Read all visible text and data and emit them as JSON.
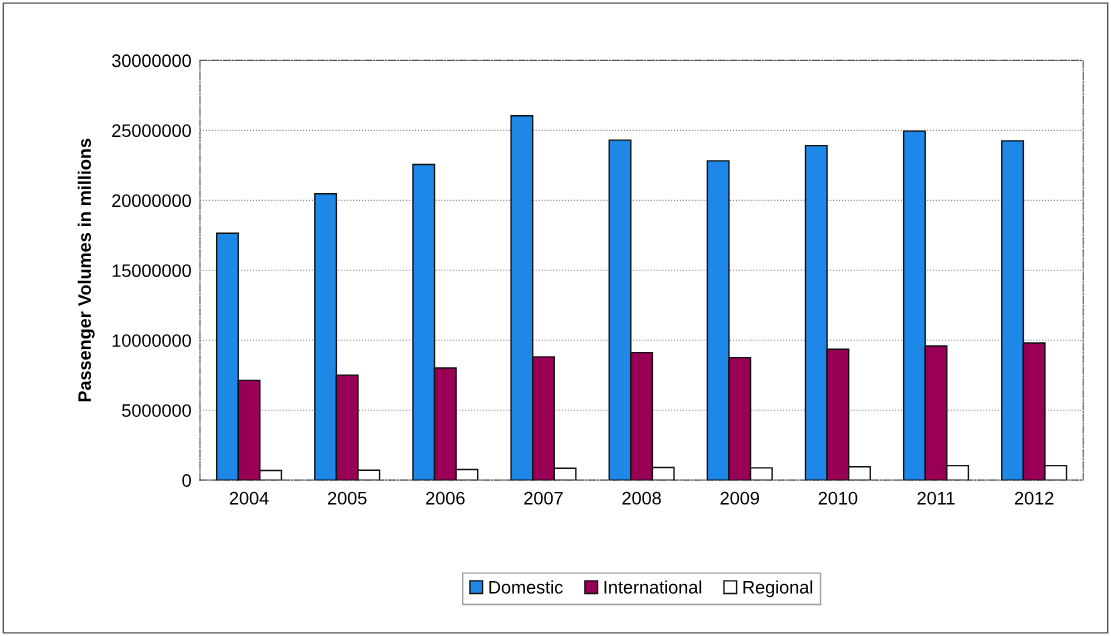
{
  "chart_data": {
    "type": "bar",
    "ylabel": "Passenger Volumes in millions",
    "categories": [
      "2004",
      "2005",
      "2006",
      "2007",
      "2008",
      "2009",
      "2010",
      "2011",
      "2012"
    ],
    "series": [
      {
        "name": "Domestic",
        "color": "#1e88e8",
        "values": [
          17650000,
          20470000,
          22560000,
          26050000,
          24300000,
          22820000,
          23910000,
          24950000,
          24250000
        ]
      },
      {
        "name": "International",
        "color": "#990055",
        "values": [
          7130000,
          7510000,
          8020000,
          8810000,
          9120000,
          8760000,
          9360000,
          9590000,
          9800000
        ]
      },
      {
        "name": "Regional",
        "color": "#ffffff",
        "values": [
          690000,
          710000,
          760000,
          850000,
          910000,
          880000,
          960000,
          1040000,
          1040000
        ]
      }
    ],
    "ylim": [
      0,
      30000000
    ],
    "yticks": [
      0,
      5000000,
      10000000,
      15000000,
      20000000,
      25000000,
      30000000
    ],
    "grid": "y",
    "legend": "bottom"
  }
}
